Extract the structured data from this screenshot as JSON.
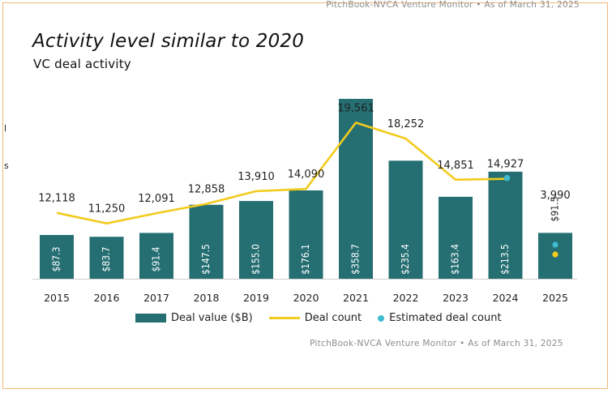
{
  "source": "PitchBook-NVCA Venture Monitor  •  As of March 31, 2025",
  "chart_data": {
    "type": "bar",
    "title": "Activity level similar to 2020",
    "subtitle": "VC deal activity",
    "categories": [
      "2015",
      "2016",
      "2017",
      "2018",
      "2019",
      "2020",
      "2021",
      "2022",
      "2023",
      "2024",
      "2025"
    ],
    "series": [
      {
        "name": "Deal value ($B)",
        "type": "bar",
        "values": [
          87.3,
          83.7,
          91.4,
          147.5,
          155.0,
          176.1,
          358.7,
          235.4,
          163.4,
          213.5,
          91.5
        ],
        "labels": [
          "$87.3",
          "$83.7",
          "$91.4",
          "$147.5",
          "$155.0",
          "$176.1",
          "$358.7",
          "$235.4",
          "$163.4",
          "$213.5",
          "$91.5"
        ],
        "color": "#256f73"
      },
      {
        "name": "Deal count",
        "type": "line",
        "values": [
          12118,
          11250,
          12091,
          12858,
          13910,
          14090,
          19561,
          18252,
          14851,
          14927,
          3990
        ],
        "labels": [
          "12,118",
          "11,250",
          "12,091",
          "12,858",
          "13,910",
          "14,090",
          "19,561",
          "18,252",
          "14,851",
          "14,927",
          "3,990"
        ],
        "color": "#f2cb1d"
      },
      {
        "name": "Estimated deal count",
        "type": "marker",
        "color": "#3fbcd0"
      }
    ],
    "legend": [
      "Deal value ($B)",
      "Deal count",
      "Estimated deal count"
    ],
    "legend_position": "bottom",
    "grid": false
  },
  "edge_marks": [
    "l",
    "s"
  ]
}
